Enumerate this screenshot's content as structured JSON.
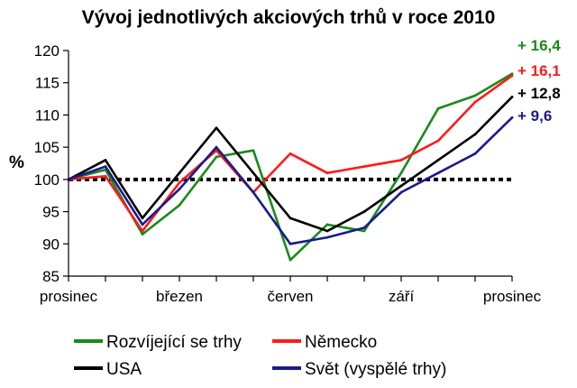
{
  "chart_data": {
    "type": "line",
    "title": "Vývoj jednotlivých akciových trhů v roce 2010",
    "ylabel": "%",
    "ylim": [
      85,
      120
    ],
    "yticks": [
      "85",
      "90",
      "95",
      "100",
      "105",
      "110",
      "115",
      "120"
    ],
    "x_labels": [
      "prosinec",
      "březen",
      "červen",
      "září",
      "prosinec"
    ],
    "x_points": 13,
    "baseline": 100,
    "series": [
      {
        "name": "Rozvíjející se trhy",
        "color": "#1a8a1a",
        "end_label": "+ 16,4",
        "values": [
          100,
          101.5,
          91.5,
          96,
          103.5,
          104.5,
          87.5,
          93,
          92,
          101,
          111,
          113,
          116.4
        ]
      },
      {
        "name": "Německo",
        "color": "#ff1a1a",
        "end_label": "+ 16,1",
        "values": [
          100,
          100.5,
          92,
          99.5,
          104.5,
          98,
          104,
          101,
          102,
          103,
          106,
          112,
          116.1
        ]
      },
      {
        "name": "USA",
        "color": "#000000",
        "end_label": "+ 12,8",
        "values": [
          100,
          103,
          94,
          101,
          108,
          101,
          94,
          92,
          95,
          99,
          103,
          107,
          112.8
        ]
      },
      {
        "name": "Svět (vyspělé trhy)",
        "color": "#1a1a8c",
        "end_label": "+ 9,6",
        "values": [
          100,
          102,
          93,
          98.5,
          105,
          98,
          90,
          91,
          92.5,
          98,
          101,
          104,
          109.6
        ]
      }
    ]
  }
}
